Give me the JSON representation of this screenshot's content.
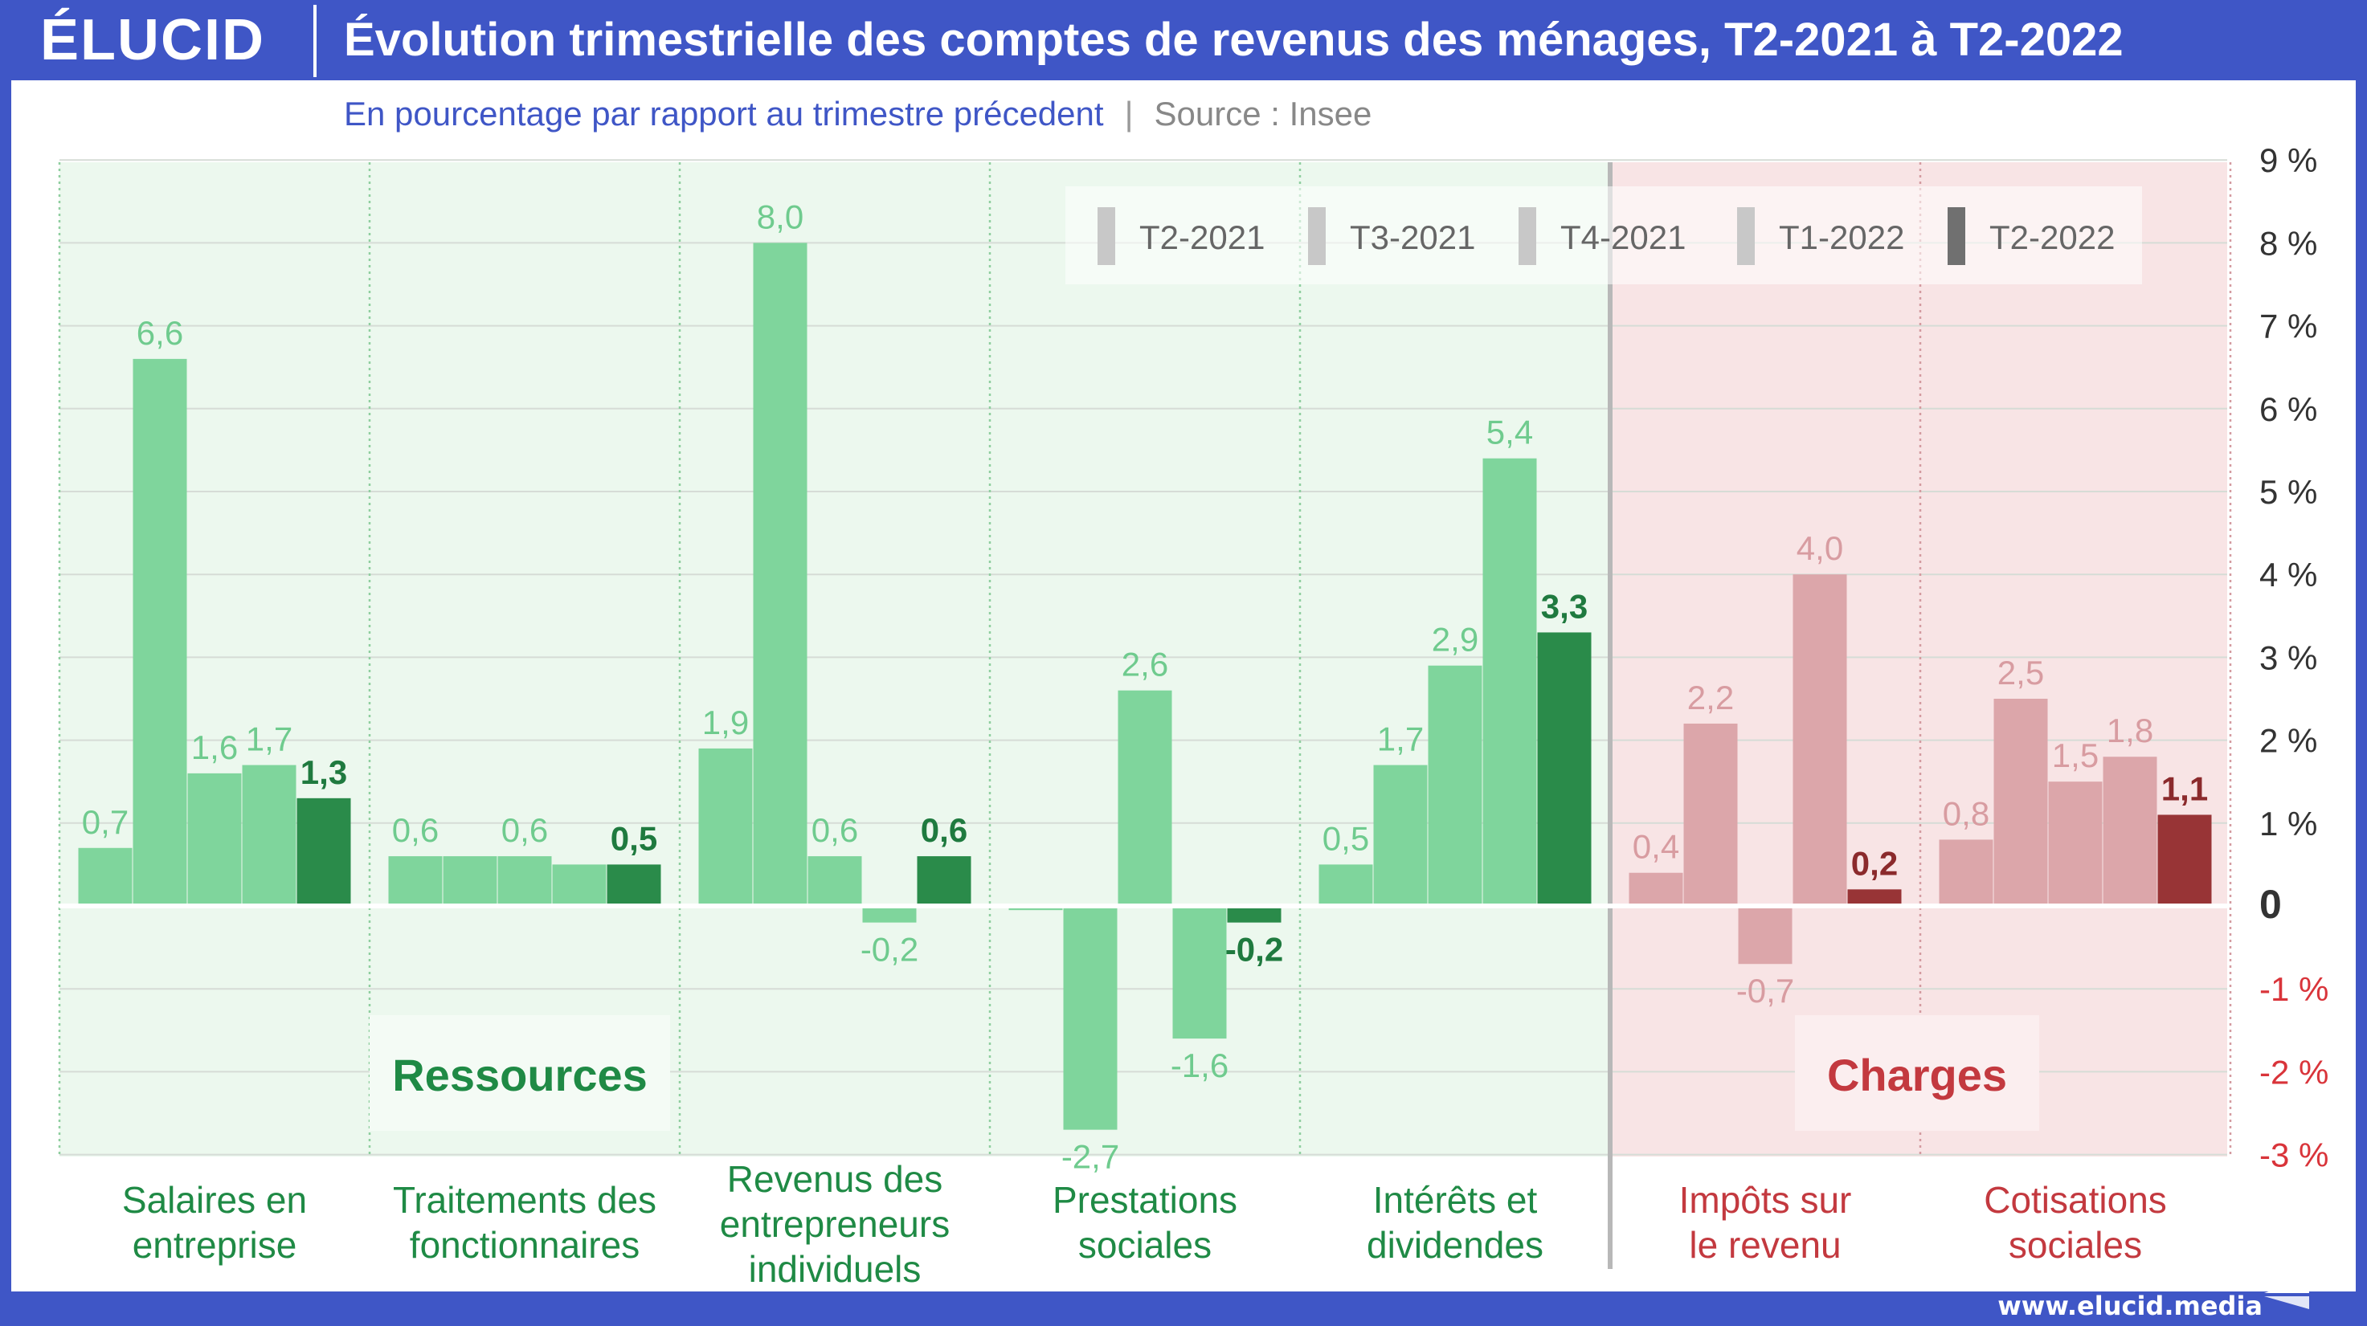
{
  "header": {
    "logo": "ÉLUCID",
    "title": "Évolution trimestrielle des comptes de revenus des ménages, T2-2021 à T2-2022"
  },
  "subtitle": {
    "text": "En pourcentage par rapport au trimestre précedent",
    "separator": "|",
    "source": "Source : Insee"
  },
  "footer": {
    "url": "www.elucid.media"
  },
  "colors": {
    "brand_blue": "#3f56c6",
    "ressources_bg": "#ecf8ee",
    "charges_bg": "#f8e4e5",
    "green_bar": "#7fd59c",
    "green_bar_last": "#2a8b4a",
    "green_label": "#6fcb8e",
    "green_label_last": "#1f7a3f",
    "red_bar": "#dca6aa",
    "red_bar_last": "#983436",
    "red_label": "#d89ca1",
    "red_label_last": "#8b2a2c",
    "legend_swatches": [
      "#c8c8c8",
      "#c8c8c8",
      "#c8c8c8",
      "#c8c8c8",
      "#707070"
    ]
  },
  "sections": [
    {
      "name": "Ressources",
      "categories": [
        0,
        1,
        2,
        3,
        4
      ]
    },
    {
      "name": "Charges",
      "categories": [
        5,
        6
      ]
    }
  ],
  "chart_data": {
    "type": "bar",
    "categories": [
      [
        "Salaires en",
        "entreprise"
      ],
      [
        "Traitements des",
        "fonctionnaires"
      ],
      [
        "Revenus des",
        "entrepreneurs",
        "individuels"
      ],
      [
        "Prestations",
        "sociales"
      ],
      [
        "Intérêts et",
        "dividendes"
      ],
      [
        "Impôts sur",
        "le revenu"
      ],
      [
        "Cotisations",
        "sociales"
      ]
    ],
    "series": [
      {
        "name": "T2-2021",
        "values": [
          0.7,
          0.6,
          1.9,
          -0.05,
          0.5,
          0.4,
          0.8
        ],
        "labels": [
          "0,7",
          "0,6",
          "1,9",
          "",
          "0,5",
          "0,4",
          "0,8"
        ]
      },
      {
        "name": "T3-2021",
        "values": [
          6.6,
          0.6,
          8.0,
          -2.7,
          1.7,
          2.2,
          2.5
        ],
        "labels": [
          "6,6",
          "",
          "8,0",
          "-2,7",
          "1,7",
          "2,2",
          "2,5"
        ]
      },
      {
        "name": "T4-2021",
        "values": [
          1.6,
          0.6,
          0.6,
          2.6,
          2.9,
          -0.7,
          1.5
        ],
        "labels": [
          "1,6",
          "0,6",
          "0,6",
          "2,6",
          "2,9",
          "-0,7",
          "1,5"
        ]
      },
      {
        "name": "T1-2022",
        "values": [
          1.7,
          0.5,
          -0.2,
          -1.6,
          5.4,
          4.0,
          1.8
        ],
        "labels": [
          "1,7",
          "",
          "-0,2",
          "-1,6",
          "5,4",
          "4,0",
          "1,8"
        ]
      },
      {
        "name": "T2-2022",
        "values": [
          1.3,
          0.5,
          0.6,
          -0.2,
          3.3,
          0.2,
          1.1
        ],
        "labels": [
          "1,3",
          "0,5",
          "0,6",
          "-0,2",
          "3,3",
          "0,2",
          "1,1"
        ]
      }
    ],
    "y_ticks": [
      9,
      8,
      7,
      6,
      5,
      4,
      3,
      2,
      1,
      0,
      -1,
      -2,
      -3
    ],
    "y_tick_labels": [
      "9 %",
      "8 %",
      "7 %",
      "6 %",
      "5 %",
      "4 %",
      "3 %",
      "2 %",
      "1 %",
      "0",
      "-1 %",
      "-2 %",
      "-3 %"
    ],
    "ylim": [
      -3,
      9
    ],
    "legend_position": "top-right",
    "grid": true
  }
}
